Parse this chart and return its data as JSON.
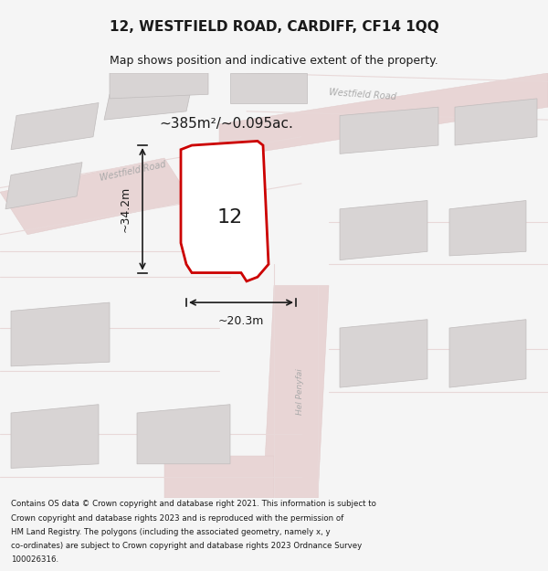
{
  "title_line1": "12, WESTFIELD ROAD, CARDIFF, CF14 1QQ",
  "title_line2": "Map shows position and indicative extent of the property.",
  "area_label": "~385m²/~0.095ac.",
  "label_number": "12",
  "dim_vertical": "~34.2m",
  "dim_horizontal": "~20.3m",
  "road_label_1": "Westfield Road",
  "road_label_2": "Westfield Road",
  "road_label_3": "Hel Penyfai",
  "footer_lines": [
    "Contains OS data © Crown copyright and database right 2021. This information is subject to",
    "Crown copyright and database rights 2023 and is reproduced with the permission of",
    "HM Land Registry. The polygons (including the associated geometry, namely x, y",
    "co-ordinates) are subject to Crown copyright and database rights 2023 Ordnance Survey",
    "100026316."
  ],
  "bg_color": "#f5f5f5",
  "map_bg": "#f0efef",
  "road_color": "#e8d8d8",
  "building_color": "#d8d4d4",
  "plot_color": "#cc0000",
  "plot_fill": "#ffffff",
  "dim_color": "#1a1a1a",
  "title_color": "#1a1a1a",
  "footer_color": "#1a1a1a"
}
